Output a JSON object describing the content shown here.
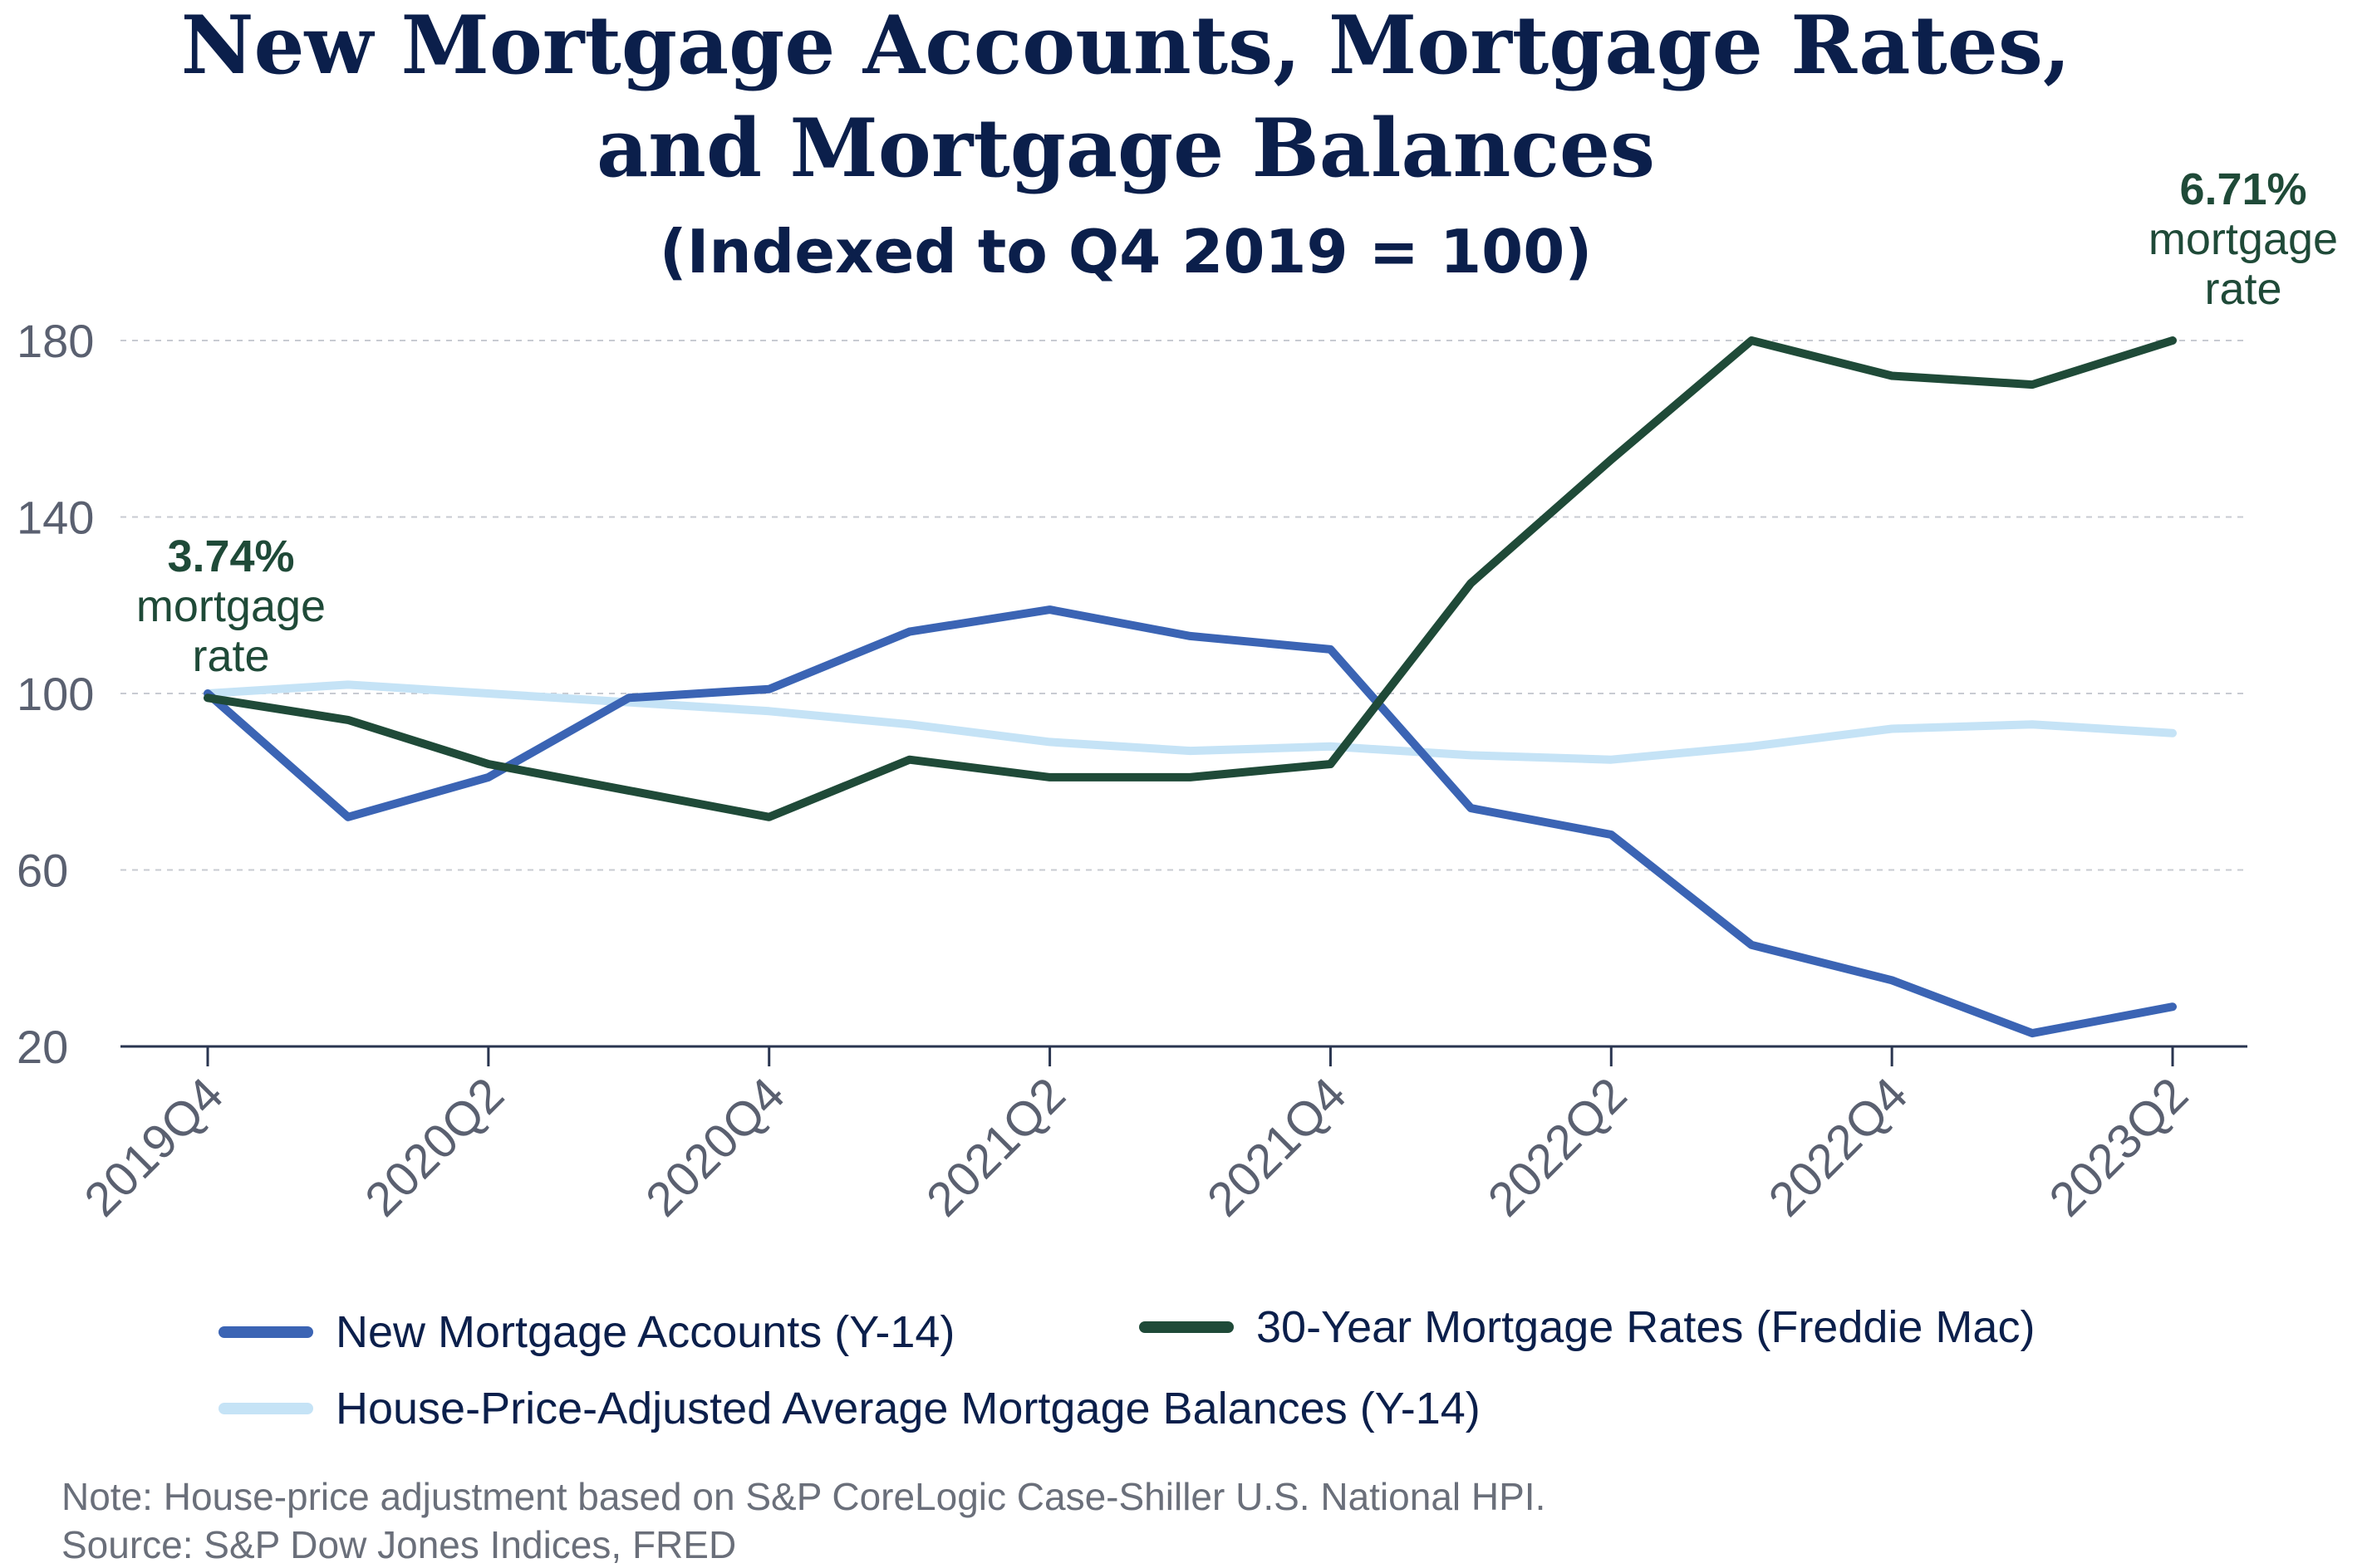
{
  "chart_data": {
    "type": "line",
    "title_lines": [
      "New Mortgage Accounts, Mortgage Rates,",
      "and Mortgage Balances"
    ],
    "subtitle": "(Indexed to Q4 2019 = 100)",
    "x": [
      "2019Q4",
      "2020Q1",
      "2020Q2",
      "2020Q3",
      "2020Q4",
      "2021Q1",
      "2021Q2",
      "2021Q3",
      "2021Q4",
      "2022Q1",
      "2022Q2",
      "2022Q3",
      "2022Q4",
      "2023Q1",
      "2023Q2"
    ],
    "tick_labels": [
      "2019Q4",
      "2020Q2",
      "2020Q4",
      "2021Q2",
      "2021Q4",
      "2022Q2",
      "2022Q4",
      "2023Q2"
    ],
    "ylim": [
      20,
      180
    ],
    "yticks": [
      20,
      60,
      100,
      140,
      180
    ],
    "grid": "horizontal dashed",
    "legend_position": "bottom",
    "colors": {
      "new_accounts": "#3b64b4",
      "mortgage_rate": "#1f4a38",
      "balances": "#c5e3f6",
      "title": "#0b1f4b",
      "axis": "#2a3550",
      "grid": "#c8cbd2",
      "tick_text": "#5a6070"
    },
    "series": [
      {
        "key": "balances",
        "name": "House-Price-Adjusted Average Mortgage Balances (Y-14)",
        "values": [
          100,
          102,
          100,
          98,
          96,
          93,
          89,
          87,
          88,
          86,
          85,
          88,
          92,
          93,
          91
        ]
      },
      {
        "key": "new_accounts",
        "name": "New Mortgage Accounts (Y-14)",
        "values": [
          100,
          72,
          81,
          99,
          101,
          114,
          119,
          113,
          110,
          74,
          68,
          43,
          35,
          23,
          29
        ]
      },
      {
        "key": "mortgage_rate",
        "name": "30-Year Mortgage Rates (Freddie Mac)",
        "values": [
          99,
          94,
          84,
          78,
          72,
          85,
          81,
          81,
          84,
          125,
          153,
          180,
          172,
          170,
          180
        ]
      }
    ],
    "annotations": [
      {
        "bold": "3.74%",
        "lines": [
          "mortgage",
          "rate"
        ]
      },
      {
        "bold": "6.71%",
        "lines": [
          "mortgage",
          "rate"
        ]
      }
    ],
    "legend": [
      "New Mortgage Accounts (Y-14)",
      "30-Year Mortgage Rates (Freddie Mac)",
      "House-Price-Adjusted Average Mortgage Balances (Y-14)"
    ]
  },
  "footer": {
    "note": "Note: House-price adjustment based on S&P CoreLogic Case-Shiller U.S. National HPI.",
    "source": "Source: S&P Dow Jones Indices, FRED"
  }
}
